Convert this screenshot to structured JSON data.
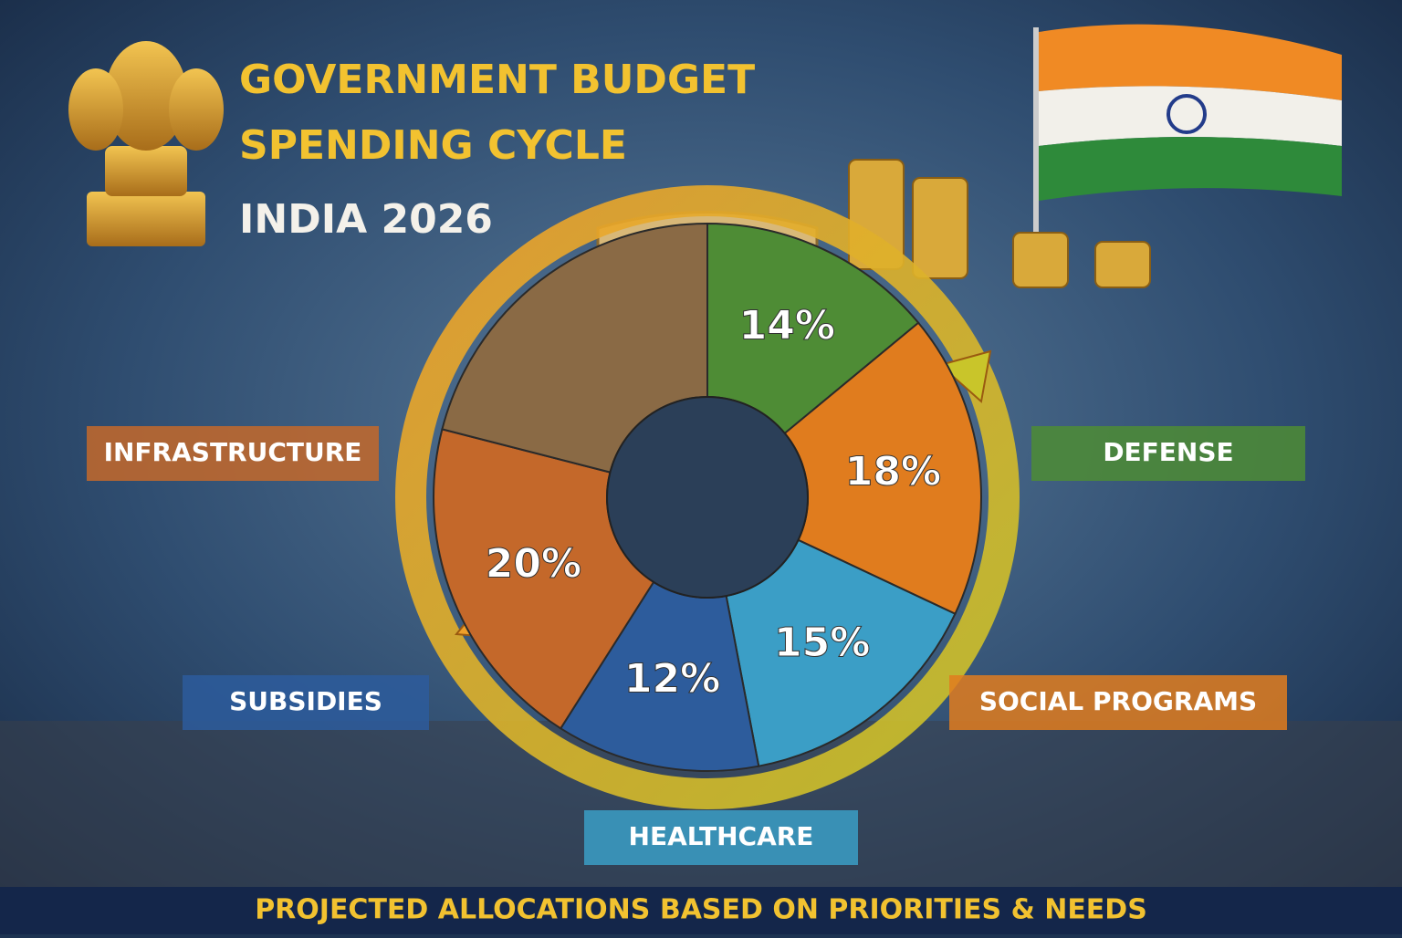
{
  "chart_data": {
    "type": "pie",
    "title": [
      "GOVERNMENT BUDGET",
      "SPENDING CYCLE"
    ],
    "subtitle": "INDIA 2026",
    "caption": "PROJECTED ALLOCATIONS BASED ON PRIORITIES & NEEDS",
    "categories": [
      "DEFENSE",
      "SOCIAL PROGRAMS",
      "HEALTHCARE",
      "SUBSIDIES",
      "INFRASTRUCTURE"
    ],
    "values": [
      14,
      18,
      15,
      12,
      20
    ],
    "value_labels": [
      "14%",
      "18%",
      "15%",
      "12%",
      "20%"
    ],
    "colors": [
      "#4e8c35",
      "#e07c1e",
      "#3b9ec6",
      "#2d5c9c",
      "#c4682a"
    ]
  }
}
